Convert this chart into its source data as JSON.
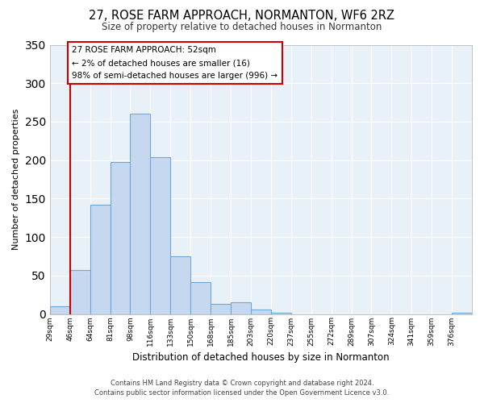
{
  "title": "27, ROSE FARM APPROACH, NORMANTON, WF6 2RZ",
  "subtitle": "Size of property relative to detached houses in Normanton",
  "xlabel": "Distribution of detached houses by size in Normanton",
  "ylabel": "Number of detached properties",
  "bin_labels": [
    "29sqm",
    "46sqm",
    "64sqm",
    "81sqm",
    "98sqm",
    "116sqm",
    "133sqm",
    "150sqm",
    "168sqm",
    "185sqm",
    "203sqm",
    "220sqm",
    "237sqm",
    "255sqm",
    "272sqm",
    "289sqm",
    "307sqm",
    "324sqm",
    "341sqm",
    "359sqm",
    "376sqm"
  ],
  "bar_values": [
    10,
    57,
    142,
    198,
    260,
    204,
    75,
    41,
    13,
    15,
    6,
    2,
    0,
    0,
    0,
    0,
    0,
    0,
    0,
    0,
    2
  ],
  "bar_color": "#c5d8f0",
  "bar_edge_color": "#6fa8d6",
  "vline_x": 1,
  "vline_color": "#cc0000",
  "annotation_lines": [
    "27 ROSE FARM APPROACH: 52sqm",
    "← 2% of detached houses are smaller (16)",
    "98% of semi-detached houses are larger (996) →"
  ],
  "annotation_box_color": "#ffffff",
  "annotation_box_edge_color": "#cc0000",
  "ylim": [
    0,
    350
  ],
  "yticks": [
    0,
    50,
    100,
    150,
    200,
    250,
    300,
    350
  ],
  "footer_line1": "Contains HM Land Registry data © Crown copyright and database right 2024.",
  "footer_line2": "Contains public sector information licensed under the Open Government Licence v3.0.",
  "bg_color": "#ffffff",
  "plot_bg_color": "#e8f0f8",
  "grid_color": "#ffffff"
}
